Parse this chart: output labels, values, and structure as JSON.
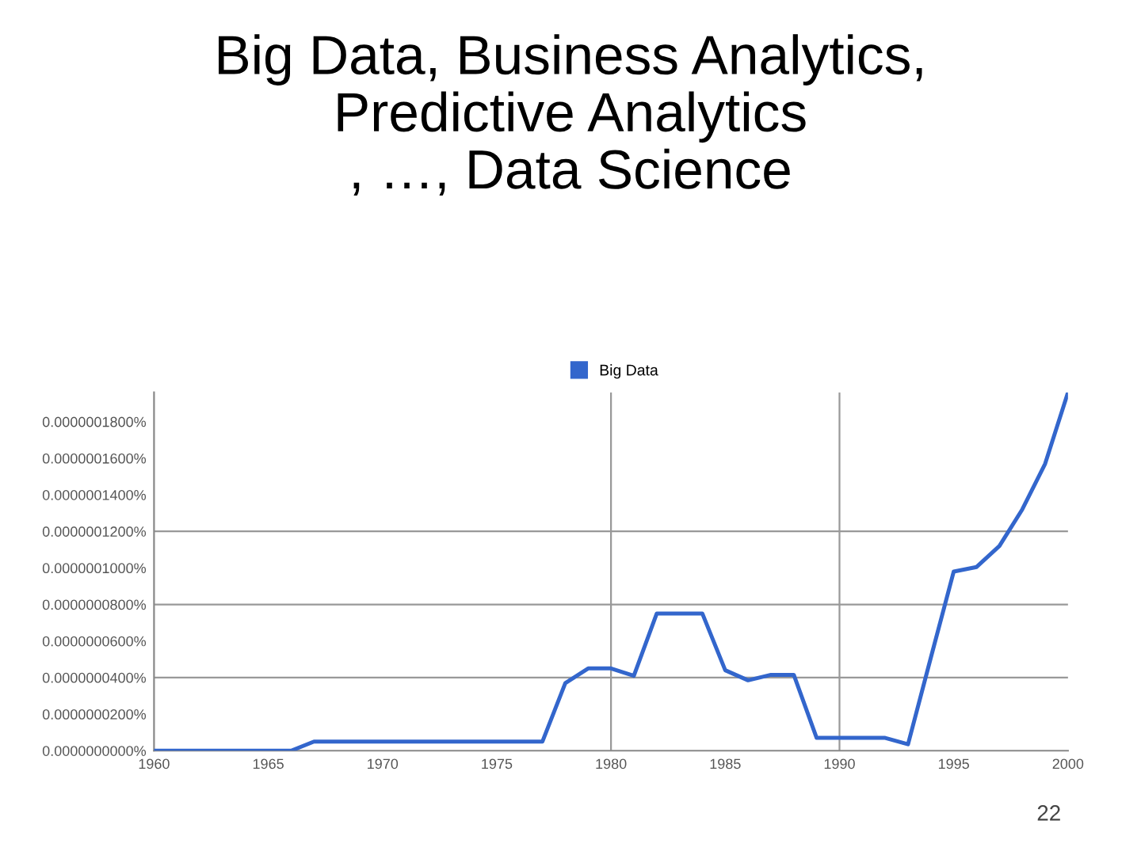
{
  "chart_data": {
    "type": "line",
    "title": "Big Data, Business Analytics,\nPredictive Analytics\n, …, Data Science",
    "x": [
      1960,
      1961,
      1962,
      1963,
      1964,
      1965,
      1966,
      1967,
      1968,
      1969,
      1970,
      1971,
      1972,
      1973,
      1974,
      1975,
      1976,
      1977,
      1978,
      1979,
      1980,
      1981,
      1982,
      1983,
      1984,
      1985,
      1986,
      1987,
      1988,
      1989,
      1990,
      1991,
      1992,
      1993,
      1994,
      1995,
      1996,
      1997,
      1998,
      1999,
      2000
    ],
    "series": [
      {
        "name": "Big Data",
        "color": "#3366cc",
        "values": [
          0,
          0,
          0,
          0,
          0,
          0,
          0,
          5e-09,
          5e-09,
          5e-09,
          5e-09,
          5e-09,
          5e-09,
          5e-09,
          5e-09,
          5e-09,
          5e-09,
          5e-09,
          3.7e-08,
          4.5e-08,
          4.5e-08,
          4.1e-08,
          7.5e-08,
          7.5e-08,
          7.5e-08,
          4.4e-08,
          3.85e-08,
          4.15e-08,
          4.15e-08,
          7e-09,
          7e-09,
          7e-09,
          7e-09,
          3.5e-09,
          5.1e-08,
          9.8e-08,
          1.005e-07,
          1.12e-07,
          1.32e-07,
          1.57e-07,
          1.96e-07
        ]
      }
    ],
    "xlim": [
      1960,
      2000
    ],
    "ylim": [
      0,
      1.96e-07
    ],
    "xticks": [
      1960,
      1965,
      1970,
      1975,
      1980,
      1985,
      1990,
      1995,
      2000
    ],
    "yticks": [
      {
        "value": 0,
        "label": "0.0000000000%"
      },
      {
        "value": 2e-08,
        "label": "0.0000000200%"
      },
      {
        "value": 4e-08,
        "label": "0.0000000400%"
      },
      {
        "value": 6e-08,
        "label": "0.0000000600%"
      },
      {
        "value": 8e-08,
        "label": "0.0000000800%"
      },
      {
        "value": 1e-07,
        "label": "0.0000001000%"
      },
      {
        "value": 1.2e-07,
        "label": "0.0000001200%"
      },
      {
        "value": 1.4e-07,
        "label": "0.0000001400%"
      },
      {
        "value": 1.6e-07,
        "label": "0.0000001600%"
      },
      {
        "value": 1.8e-07,
        "label": "0.0000001800%"
      }
    ],
    "ref_lines": [
      {
        "axis": "y",
        "value": 4e-08,
        "color": "#999999"
      },
      {
        "axis": "y",
        "value": 8e-08,
        "color": "#999999"
      },
      {
        "axis": "y",
        "value": 1.2e-07,
        "color": "#999999"
      },
      {
        "axis": "x",
        "value": 1980,
        "color": "#999999"
      },
      {
        "axis": "x",
        "value": 1990,
        "color": "#999999"
      }
    ],
    "legend": "top",
    "marker": "none",
    "line_style": "solid",
    "annotations": [
      "22"
    ]
  }
}
